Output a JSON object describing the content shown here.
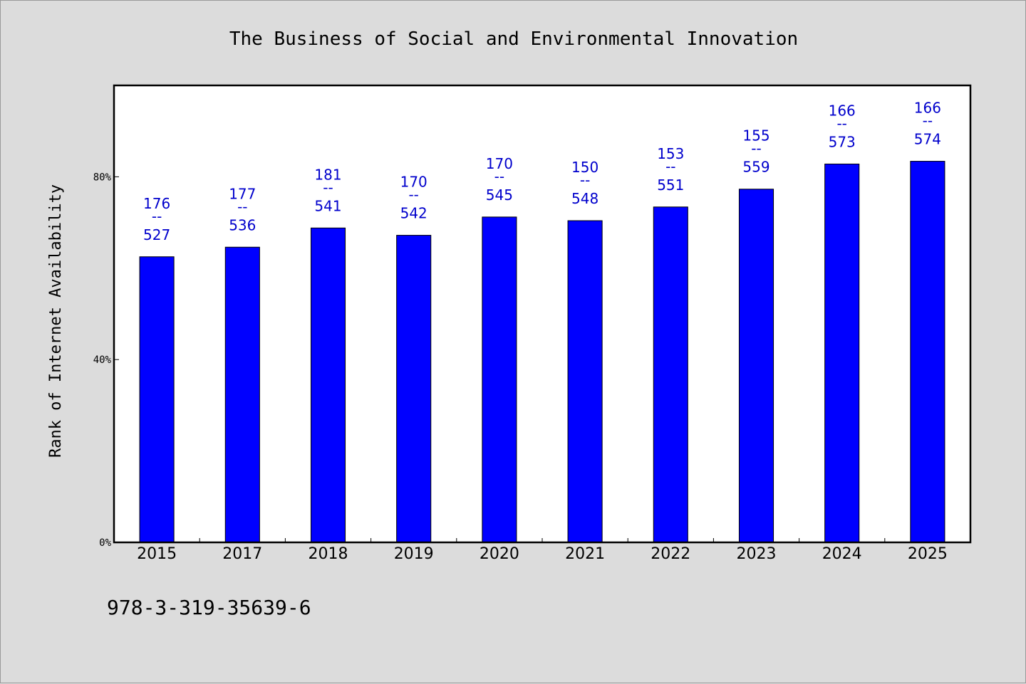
{
  "chart_data": {
    "type": "bar",
    "title": "The Business of Social and Environmental Innovation",
    "xlabel": "",
    "ylabel": "Rank of Internet Availability",
    "categories": [
      "2015",
      "2017",
      "2018",
      "2019",
      "2020",
      "2021",
      "2022",
      "2023",
      "2024",
      "2025"
    ],
    "values": [
      62.5,
      64.6,
      68.8,
      67.2,
      71.2,
      70.4,
      73.4,
      77.3,
      82.8,
      83.4
    ],
    "value_unit": "%",
    "data_labels": [
      {
        "top": "176",
        "sep": "--",
        "bottom": "527"
      },
      {
        "top": "177",
        "sep": "--",
        "bottom": "536"
      },
      {
        "top": "181",
        "sep": "--",
        "bottom": "541"
      },
      {
        "top": "170",
        "sep": "--",
        "bottom": "542"
      },
      {
        "top": "170",
        "sep": "--",
        "bottom": "545"
      },
      {
        "top": "150",
        "sep": "--",
        "bottom": "548"
      },
      {
        "top": "153",
        "sep": "--",
        "bottom": "551"
      },
      {
        "top": "155",
        "sep": "--",
        "bottom": "559"
      },
      {
        "top": "166",
        "sep": "--",
        "bottom": "573"
      },
      {
        "top": "166",
        "sep": "--",
        "bottom": "574"
      }
    ],
    "yticks": [
      {
        "value": 0,
        "label": "0%"
      },
      {
        "value": 40,
        "label": "40%"
      },
      {
        "value": 80,
        "label": "80%"
      }
    ],
    "ylim": [
      0,
      100
    ],
    "grid": false,
    "legend": "none",
    "colors": {
      "bar": "#0000ff",
      "bar_edge": "#000000",
      "data_label": "#0000cc",
      "plot_bg": "#ffffff",
      "page_bg": "#dcdcdc"
    }
  },
  "footer": {
    "isbn": "978-3-319-35639-6"
  }
}
